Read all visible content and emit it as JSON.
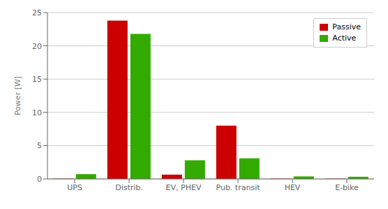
{
  "chart_data": {
    "type": "bar",
    "categories": [
      "UPS",
      "Distrib.",
      "EV, PHEV",
      "Pub. transit",
      "HEV",
      "E-bike"
    ],
    "series": [
      {
        "name": "Passive",
        "color": "#cc0000",
        "values": [
          0.05,
          23.8,
          0.65,
          8.0,
          0.05,
          0.05
        ]
      },
      {
        "name": "Active",
        "color": "#33aa00",
        "values": [
          0.72,
          21.8,
          2.8,
          3.1,
          0.38,
          0.33
        ]
      }
    ],
    "ylabel": "Power [W]",
    "ylim": [
      0,
      25
    ],
    "yticks": [
      0,
      5,
      10,
      15,
      20,
      25
    ],
    "grid": true,
    "legend": "upper right"
  }
}
